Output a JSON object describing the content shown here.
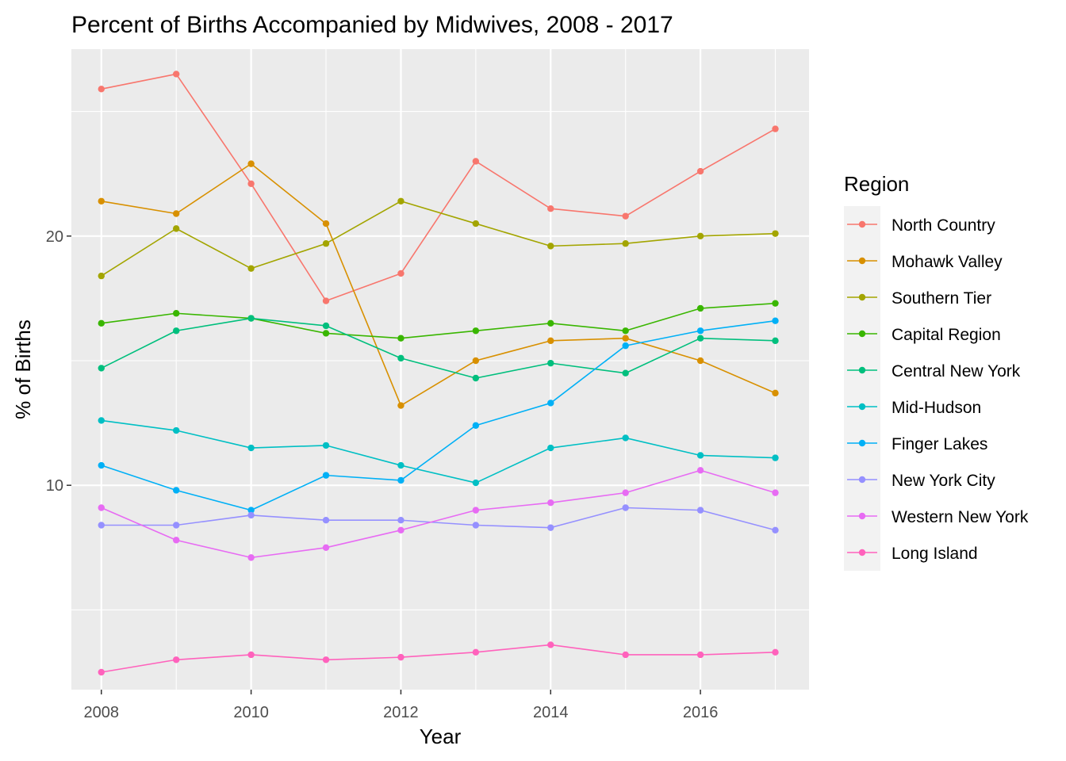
{
  "chart_data": {
    "type": "line",
    "title": "Percent of Births Accompanied by Midwives, 2008 - 2017",
    "xlabel": "Year",
    "ylabel": "% of Births",
    "x": [
      2008,
      2009,
      2010,
      2011,
      2012,
      2013,
      2014,
      2015,
      2016,
      2017
    ],
    "x_ticks": [
      "2008",
      "2010",
      "2012",
      "2014",
      "2016"
    ],
    "y_ticks": [
      "10",
      "20"
    ],
    "xlim": [
      2007.6,
      2017.45
    ],
    "ylim": [
      1.8,
      27.5
    ],
    "grid": true,
    "legend_position": "right",
    "legend_title": "Region",
    "series": [
      {
        "name": "North Country",
        "color": "#F8766D",
        "values": [
          25.9,
          26.5,
          22.1,
          17.4,
          18.5,
          23.0,
          21.1,
          20.8,
          22.6,
          24.3
        ]
      },
      {
        "name": "Mohawk Valley",
        "color": "#D89000",
        "values": [
          21.4,
          20.9,
          22.9,
          20.5,
          13.2,
          15.0,
          15.8,
          15.9,
          15.0,
          13.7
        ]
      },
      {
        "name": "Southern Tier",
        "color": "#A3A500",
        "values": [
          18.4,
          20.3,
          18.7,
          19.7,
          21.4,
          20.5,
          19.6,
          19.7,
          20.0,
          20.1
        ]
      },
      {
        "name": "Capital Region",
        "color": "#39B600",
        "values": [
          16.5,
          16.9,
          16.7,
          16.1,
          15.9,
          16.2,
          16.5,
          16.2,
          17.1,
          17.3
        ]
      },
      {
        "name": "Central New York",
        "color": "#00BF7D",
        "values": [
          14.7,
          16.2,
          16.7,
          16.4,
          15.1,
          14.3,
          14.9,
          14.5,
          15.9,
          15.8
        ]
      },
      {
        "name": "Mid-Hudson",
        "color": "#00BFC4",
        "values": [
          12.6,
          12.2,
          11.5,
          11.6,
          10.8,
          10.1,
          11.5,
          11.9,
          11.2,
          11.1
        ]
      },
      {
        "name": "Finger Lakes",
        "color": "#00B0F6",
        "values": [
          10.8,
          9.8,
          9.0,
          10.4,
          10.2,
          12.4,
          13.3,
          15.6,
          16.2,
          16.6
        ]
      },
      {
        "name": "New York City",
        "color": "#9590FF",
        "values": [
          8.4,
          8.4,
          8.8,
          8.6,
          8.6,
          8.4,
          8.3,
          9.1,
          9.0,
          8.2
        ]
      },
      {
        "name": "Western New York",
        "color": "#E76BF3",
        "values": [
          9.1,
          7.8,
          7.1,
          7.5,
          8.2,
          9.0,
          9.3,
          9.7,
          10.6,
          9.7
        ]
      },
      {
        "name": "Long Island",
        "color": "#FF62BC",
        "values": [
          2.5,
          3.0,
          3.2,
          3.0,
          3.1,
          3.3,
          3.6,
          3.2,
          3.2,
          3.3
        ]
      }
    ]
  },
  "colors": {
    "panel_background": "#EBEBEB",
    "grid_major": "#FFFFFF",
    "legend_key_background": "#F2F2F2"
  }
}
